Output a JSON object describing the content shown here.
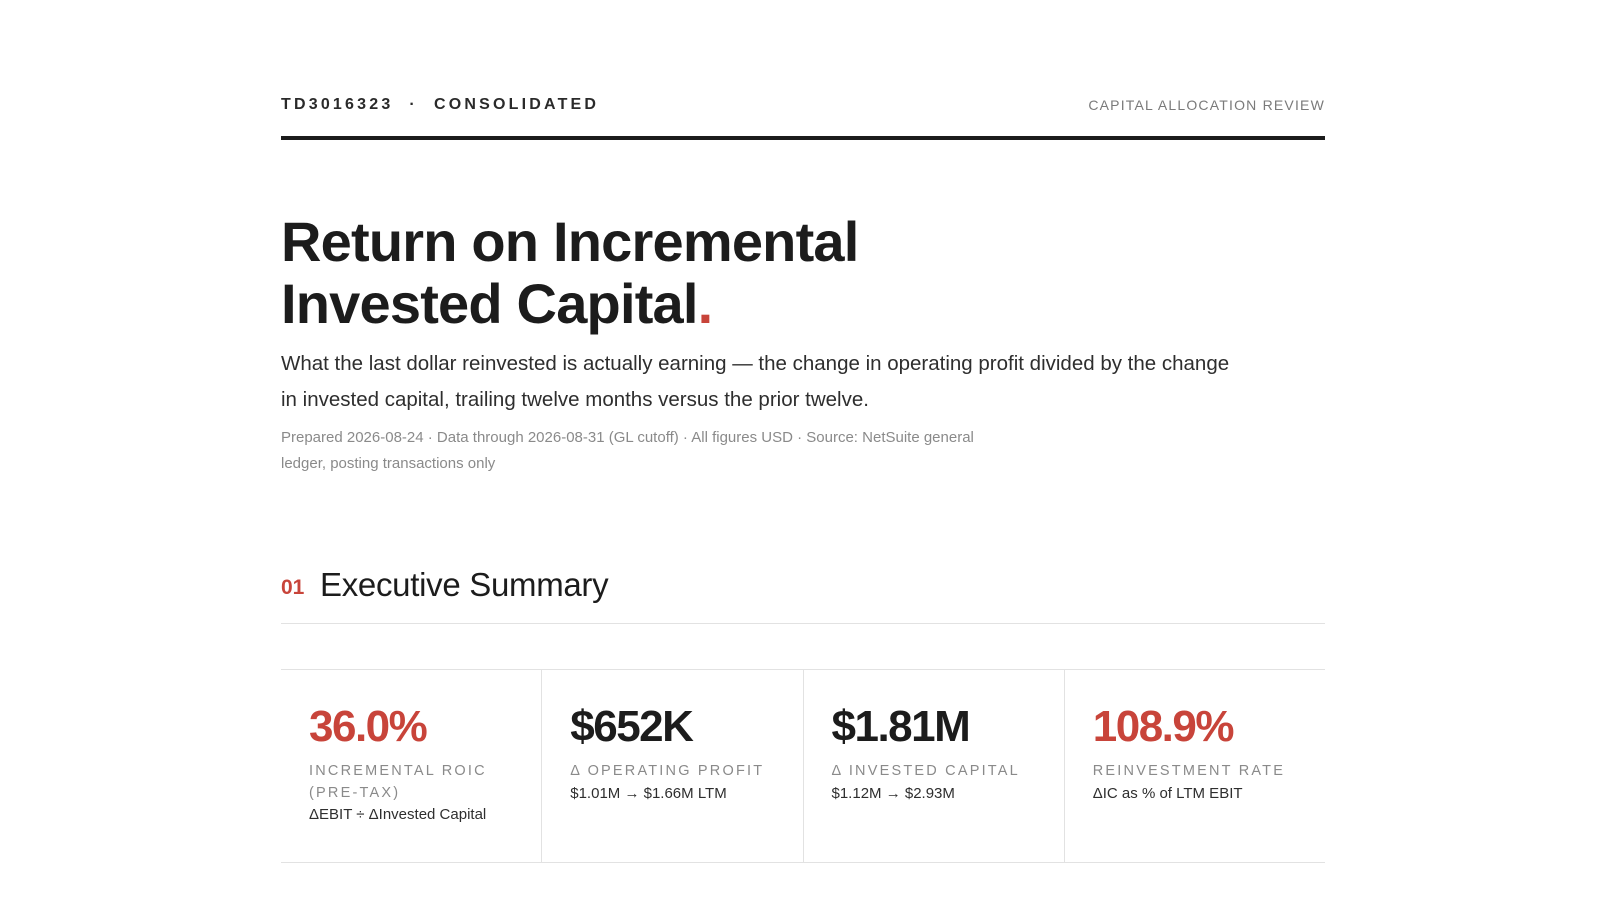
{
  "header": {
    "doc_id": "TD3016323",
    "separator": "·",
    "entity": "CONSOLIDATED",
    "report_type": "CAPITAL ALLOCATION REVIEW"
  },
  "hero": {
    "title_line1": "Return on Incremental",
    "title_line2": "Invested Capital",
    "title_dot": ".",
    "subtitle": "What the last dollar reinvested is actually earning — the change in operating profit divided by the change in invested capital, trailing twelve months versus the prior twelve.",
    "meta": "Prepared 2026-08-24 · Data through 2026-08-31 (GL cutoff) · All figures USD · Source: NetSuite general ledger, posting transactions only"
  },
  "section": {
    "number": "01",
    "title": "Executive Summary"
  },
  "kpis": [
    {
      "value": "36.0%",
      "label": "Incremental ROIC (pre-tax)",
      "note": "ΔEBIT ÷ ΔInvested Capital",
      "accent": true
    },
    {
      "value": "$652K",
      "label": "Δ Operating Profit",
      "note": "$1.01M → $1.66M LTM",
      "accent": false
    },
    {
      "value": "$1.81M",
      "label": "Δ Invested Capital",
      "note": "$1.12M → $2.93M",
      "accent": false
    },
    {
      "value": "108.9%",
      "label": "Reinvestment Rate",
      "note": "ΔIC as % of LTM EBIT",
      "accent": true
    }
  ],
  "colors": {
    "accent": "#c8443a",
    "ink": "#1c1c1c",
    "muted": "#8a8a8a",
    "rule": "#e2e2e2"
  }
}
